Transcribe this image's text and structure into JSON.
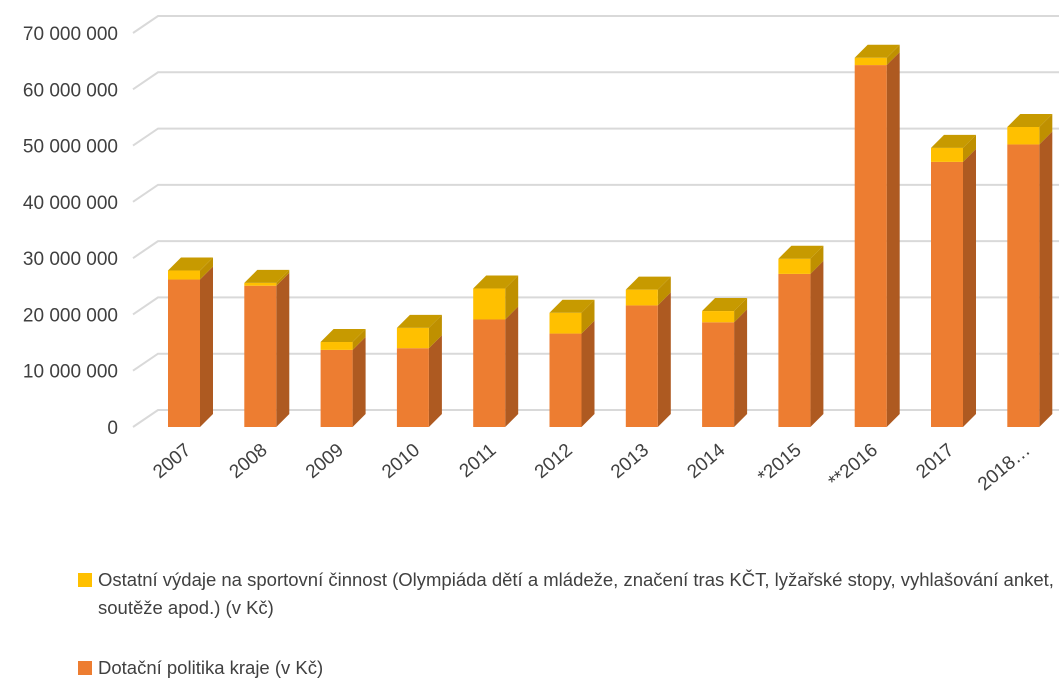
{
  "colors": {
    "series_front": [
      "#ed7d31",
      "#ffc000"
    ],
    "series_side": [
      "#ae5a21",
      "#bf9000"
    ],
    "series_top": [
      "#f4b183",
      "#c79a00"
    ],
    "grid": "#d9d9d9",
    "text": "#404040"
  },
  "chart_data": {
    "type": "bar",
    "stacked": true,
    "three_d": true,
    "categories": [
      "2007",
      "2008",
      "2009",
      "2010",
      "2011",
      "2012",
      "2013",
      "2014",
      "*2015",
      "**2016",
      "2017",
      "2018…"
    ],
    "series": [
      {
        "name": "Dotační politika kraje  (v Kč)",
        "values": [
          26200000,
          25100000,
          13700000,
          14000000,
          19100000,
          16600000,
          21600000,
          18600000,
          27200000,
          64300000,
          47100000,
          50200000
        ]
      },
      {
        "name": "Ostatní výdaje na sportovní činnost (Olympiáda dětí a mládeže, značení tras KČT, lyžařské stopy, vyhlašování anket, soutěže apod.) (v Kč)",
        "values": [
          1600000,
          500000,
          1400000,
          3600000,
          5500000,
          3700000,
          2800000,
          2000000,
          2700000,
          1300000,
          2500000,
          3100000
        ]
      }
    ],
    "yticks": [
      "0",
      "10 000 000",
      "20 000 000",
      "30 000 000",
      "40 000 000",
      "50 000 000",
      "60 000 000",
      "70 000 000"
    ],
    "ylim": [
      0,
      70000000
    ],
    "grid": true,
    "legend_position": "bottom",
    "xlabel": "",
    "ylabel": ""
  }
}
